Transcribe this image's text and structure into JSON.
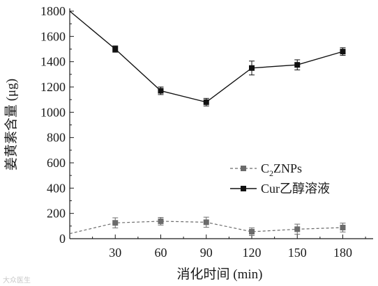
{
  "chart_data": {
    "type": "line",
    "x": [
      0,
      30,
      60,
      90,
      120,
      150,
      180
    ],
    "xticks": [
      "30",
      "60",
      "90",
      "120",
      "150",
      "180"
    ],
    "xtick_values": [
      30,
      60,
      90,
      120,
      150,
      180
    ],
    "xlim": [
      0,
      200
    ],
    "ylim": [
      0,
      1800
    ],
    "yticks": [
      "0",
      "200",
      "400",
      "600",
      "800",
      "1000",
      "1200",
      "1400",
      "1600",
      "1800"
    ],
    "ytick_values": [
      0,
      200,
      400,
      600,
      800,
      1000,
      1200,
      1400,
      1600,
      1800
    ],
    "xlabel": "消化时间 (min)",
    "ylabel": "姜黄素含量 (μg)",
    "legend_position": "middle-right",
    "series": [
      {
        "name": "C₂ZNPs",
        "style": "dashed",
        "color": "#6b6b6b",
        "x": [
          0,
          30,
          60,
          90,
          120,
          150,
          180
        ],
        "values": [
          40,
          125,
          138,
          130,
          55,
          75,
          88
        ],
        "errors": [
          null,
          40,
          30,
          40,
          30,
          40,
          35
        ],
        "markers": [
          false,
          true,
          true,
          true,
          true,
          true,
          true
        ]
      },
      {
        "name": "Cur乙醇溶液",
        "style": "solid",
        "color": "#111111",
        "x": [
          0,
          30,
          60,
          90,
          120,
          150,
          180
        ],
        "values": [
          1800,
          1500,
          1170,
          1080,
          1350,
          1375,
          1480
        ],
        "errors": [
          null,
          25,
          30,
          30,
          55,
          40,
          30
        ],
        "markers": [
          false,
          true,
          true,
          true,
          true,
          true,
          true
        ]
      }
    ],
    "legend": {
      "c2znps": {
        "main": "C",
        "sub": "2",
        "rest": "ZNPs"
      },
      "cur": "Cur乙醇溶液"
    }
  },
  "watermark": "大众医生"
}
